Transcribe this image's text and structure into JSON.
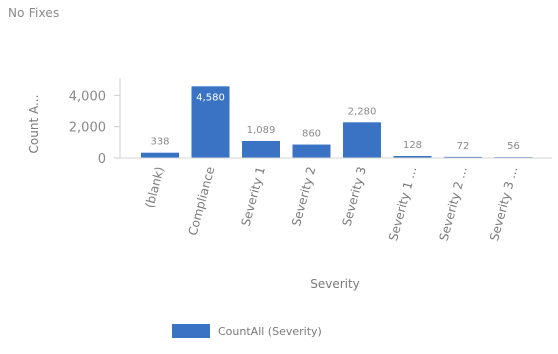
{
  "chart_data": {
    "type": "bar",
    "title": "No Fixes",
    "xlabel": "Severity",
    "ylabel": "Count A...",
    "categories": [
      "(blank)",
      "Compliance",
      "Severity 1",
      "Severity 2",
      "Severity 3",
      "Severity 1 ...",
      "Severity 2 ...",
      "Severity 3 ..."
    ],
    "series": [
      {
        "name": "CountAll (Severity)",
        "values": [
          338,
          4580,
          1089,
          860,
          2280,
          128,
          72,
          56
        ]
      }
    ],
    "data_labels": [
      "338",
      "4,580",
      "1,089",
      "860",
      "2,280",
      "128",
      "72",
      "56"
    ],
    "yticks": [
      0,
      2000,
      4000
    ],
    "ytick_labels": [
      "0",
      "2,000",
      "4,000"
    ],
    "ylim": [
      0,
      4600
    ],
    "grid": false,
    "legend_position": "bottom",
    "bar_color": "#3a73c4"
  }
}
